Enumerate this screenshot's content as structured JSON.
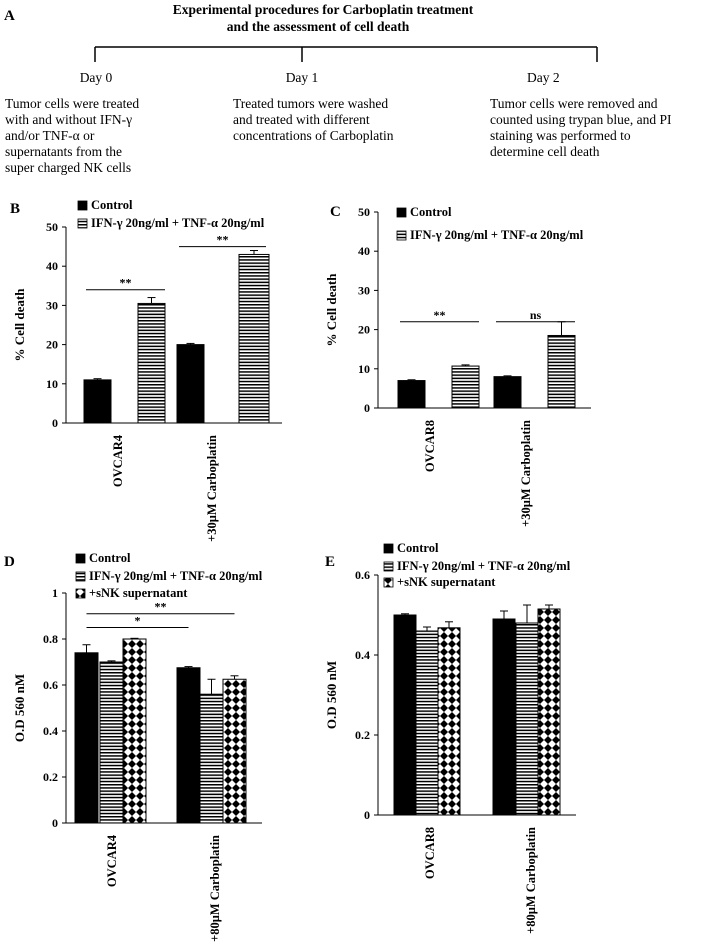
{
  "panel_a": {
    "letter": "A",
    "title_line1": "Experimental procedures  for Carboplatin treatment",
    "title_line2": "and the assessment of cell death",
    "days": [
      {
        "label": "Day 0",
        "lines": [
          "Tumor cells were treated",
          "with and without IFN-γ",
          "and/or TNF-α or",
          "supernatants  from the",
          "super charged  NK cells"
        ]
      },
      {
        "label": "Day 1",
        "lines": [
          "Treated tumors were washed",
          "and treated with different",
          "concentrations  of Carboplatin"
        ]
      },
      {
        "label": "Day 2",
        "lines": [
          "Tumor cells  were removed and",
          "counted using trypan blue, and PI",
          "staining was performed to",
          "determine cell death"
        ]
      }
    ]
  },
  "colors": {
    "control": "#000000",
    "bg": "#ffffff"
  },
  "chart_data": [
    {
      "panel": "B",
      "type": "bar",
      "ylabel": "% Cell death",
      "ylim": [
        0,
        50
      ],
      "yticks": [
        0,
        10,
        20,
        30,
        40,
        50
      ],
      "categories": [
        "OVCAR4",
        "+30μM Carboplatin"
      ],
      "series": [
        {
          "name": "Control",
          "pattern": "solid",
          "values": [
            11,
            20
          ],
          "errors": [
            0.3,
            0.3
          ]
        },
        {
          "name": "IFN-γ 20ng/ml + TNF-α  20ng/ml",
          "pattern": "hlines",
          "values": [
            30.5,
            43
          ],
          "errors": [
            1.5,
            1
          ]
        }
      ],
      "significance": [
        {
          "label": "**",
          "from_series": 0,
          "to_series": 1,
          "category": 0,
          "y": 34
        },
        {
          "label": "**",
          "from_series": 0,
          "to_series": 1,
          "category": 1,
          "y": 45
        }
      ]
    },
    {
      "panel": "C",
      "type": "bar",
      "ylabel": "% Cell death",
      "ylim": [
        0,
        50
      ],
      "yticks": [
        0,
        10,
        20,
        30,
        40,
        50
      ],
      "categories": [
        "OVCAR8",
        "+30μM Carboplatin"
      ],
      "series": [
        {
          "name": "Control",
          "pattern": "solid",
          "values": [
            7,
            8
          ],
          "errors": [
            0.2,
            0.2
          ]
        },
        {
          "name": "IFN-γ 20ng/ml + TNF-α  20ng/ml",
          "pattern": "hlines",
          "values": [
            10.7,
            18.5
          ],
          "errors": [
            0.3,
            3.5
          ]
        }
      ],
      "significance": [
        {
          "label": "**",
          "from_series": 0,
          "to_series": 1,
          "category": 0,
          "y": 22
        },
        {
          "label": "ns",
          "from_series": 0,
          "to_series": 1,
          "category": 1,
          "y": 22
        }
      ]
    },
    {
      "panel": "D",
      "type": "bar",
      "ylabel": "O.D 560 nM",
      "ylim": [
        0,
        1
      ],
      "yticks": [
        0,
        0.2,
        0.4,
        0.6,
        0.8,
        1
      ],
      "ytick_labels": [
        "0",
        "0.2",
        "0.4",
        "0.6",
        "0.8",
        "1"
      ],
      "categories": [
        "OVCAR4",
        "+80μM Carboplatin"
      ],
      "series": [
        {
          "name": "Control",
          "pattern": "solid",
          "values": [
            0.74,
            0.675
          ],
          "errors": [
            0.035,
            0.005
          ]
        },
        {
          "name": "IFN-γ 20ng/ml + TNF-α  20ng/ml",
          "pattern": "hlines",
          "values": [
            0.7,
            0.56
          ],
          "errors": [
            0.005,
            0.065
          ]
        },
        {
          "name": "+sNK supernatant",
          "pattern": "checker",
          "values": [
            0.8,
            0.625
          ],
          "errors": [
            0.003,
            0.015
          ]
        }
      ],
      "significance_spans": [
        {
          "label": "*",
          "x_from": [
            0,
            0
          ],
          "x_to": [
            1,
            0
          ],
          "y": 0.85
        },
        {
          "label": "**",
          "x_from": [
            0,
            0
          ],
          "x_to": [
            1,
            2
          ],
          "y": 0.91
        }
      ]
    },
    {
      "panel": "E",
      "type": "bar",
      "ylabel": "O.D 560 nM",
      "ylim": [
        0,
        0.6
      ],
      "yticks": [
        0,
        0.2,
        0.4,
        0.6
      ],
      "ytick_labels": [
        "0",
        "0.2",
        "0.4",
        "0.6"
      ],
      "categories": [
        "OVCAR8",
        "+80μM Carboplatin"
      ],
      "series": [
        {
          "name": "Control",
          "pattern": "solid",
          "values": [
            0.5,
            0.49
          ],
          "errors": [
            0.003,
            0.02
          ]
        },
        {
          "name": "IFN-γ 20ng/ml + TNF-α  20ng/ml",
          "pattern": "hlines",
          "values": [
            0.46,
            0.48
          ],
          "errors": [
            0.01,
            0.045
          ]
        },
        {
          "name": "+sNK supernatant",
          "pattern": "checker",
          "values": [
            0.468,
            0.515
          ],
          "errors": [
            0.015,
            0.01
          ]
        }
      ]
    }
  ]
}
